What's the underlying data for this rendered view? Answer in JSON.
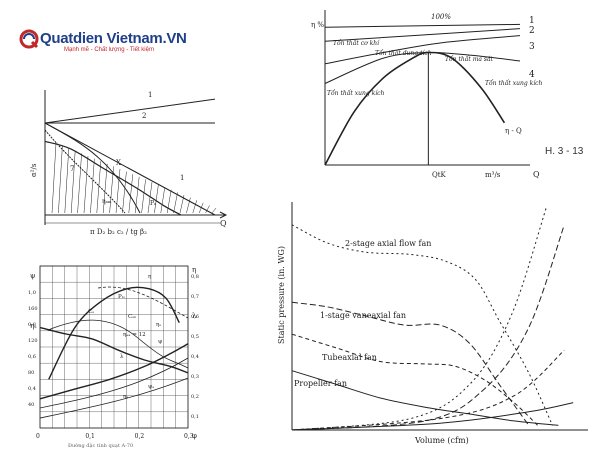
{
  "logo": {
    "brand_text": "Quatdien Vietnam.VN",
    "tagline": "Mạnh mẽ - Chất lượng - Tiết kiệm"
  },
  "caption": "H. 3 - 13",
  "chart_data": [
    {
      "type": "line",
      "panel": "top-left",
      "title": "",
      "ylabel": "α²/s",
      "xlabel": "Q",
      "x_axis_label": "π D₂ b₂ c₂ / tg β₂",
      "curve_labels": [
        "1",
        "2",
        "1",
        "7",
        "X",
        "ηₐₘ",
        "Pₐ"
      ],
      "series": [
        {
          "name": "1",
          "x": [
            0,
            1
          ],
          "y": [
            1.0,
            1.26
          ]
        },
        {
          "name": "2",
          "x": [
            0,
            1
          ],
          "y": [
            1.0,
            1.0
          ]
        },
        {
          "name": "1",
          "x": [
            0,
            1
          ],
          "y": [
            1.0,
            0.0
          ]
        },
        {
          "name": "7",
          "x": [
            0,
            0.15,
            0.35,
            0.55,
            0.7,
            0.8
          ],
          "y": [
            0.8,
            0.72,
            0.5,
            0.28,
            0.1,
            0.0
          ]
        }
      ]
    },
    {
      "type": "line",
      "panel": "top-right",
      "ylabel": "η %",
      "xlabel": "Q",
      "x_unit": "m³/s",
      "x_marker": "QtK",
      "top_label": "100%",
      "line_numbers": [
        "1",
        "2",
        "3",
        "4"
      ],
      "annotations": [
        "Tổn thất cơ khí",
        "Tổn thất dung tích",
        "Tổn thất ma sát",
        "Tổn thất xung kích",
        "Tổn thất xung kích",
        "η - Q"
      ],
      "series": [
        {
          "name": "1",
          "x": [
            0,
            1
          ],
          "y": [
            0.98,
            1.0
          ]
        },
        {
          "name": "2",
          "x": [
            0,
            1
          ],
          "y": [
            0.88,
            0.97
          ]
        },
        {
          "name": "3",
          "x": [
            0,
            0.3,
            0.6,
            1
          ],
          "y": [
            0.72,
            0.8,
            0.87,
            0.92
          ]
        },
        {
          "name": "4",
          "x": [
            0,
            0.3,
            0.53,
            0.75,
            1
          ],
          "y": [
            0.58,
            0.76,
            0.8,
            0.78,
            0.74
          ]
        },
        {
          "name": "η - Q",
          "x": [
            0,
            0.15,
            0.3,
            0.45,
            0.53,
            0.65,
            0.8,
            0.92
          ],
          "y": [
            0.0,
            0.38,
            0.62,
            0.76,
            0.8,
            0.76,
            0.55,
            0.3
          ]
        }
      ]
    },
    {
      "type": "line",
      "panel": "bottom-left",
      "xlabel": "φ",
      "x_ticks": [
        "0",
        "0,1",
        "0,2",
        "0,3"
      ],
      "left_ticks_eta": [
        "0,4",
        "0,6",
        "0,8",
        "1,0"
      ],
      "left_ticks_psi": [
        "40",
        "80",
        "120",
        "160"
      ],
      "right_ticks_lambda": [
        "0,1",
        "0,2",
        "0,3",
        "0,4",
        "0,5",
        "0,6",
        "0,7",
        "0,8"
      ],
      "left_labels": [
        "ψ",
        "ηₛ"
      ],
      "right_labels": [
        "λ",
        "η"
      ],
      "curve_labels": [
        "η",
        "ηₛ",
        "ηₑₐ = 12",
        "ψ",
        "λ",
        "ηₐ",
        "ψₛ",
        "Cₛ",
        "Cₛₙ",
        "Pₜₒ"
      ],
      "footnote": "Đường đặc tính quạt A-70",
      "series": [
        {
          "name": "η",
          "x": [
            0.02,
            0.08,
            0.14,
            0.2,
            0.25,
            0.29,
            0.32
          ],
          "y": [
            0.3,
            0.62,
            0.78,
            0.86,
            0.86,
            0.8,
            0.65
          ]
        },
        {
          "name": "ψ",
          "x": [
            0.0,
            0.06,
            0.12,
            0.18,
            0.24,
            0.3,
            0.34
          ],
          "y": [
            0.62,
            0.58,
            0.55,
            0.48,
            0.42,
            0.38,
            0.34
          ]
        },
        {
          "name": "λ",
          "x": [
            0.0,
            0.08,
            0.16,
            0.24,
            0.3,
            0.34
          ],
          "y": [
            0.18,
            0.24,
            0.3,
            0.38,
            0.46,
            0.52
          ]
        }
      ]
    },
    {
      "type": "line",
      "panel": "bottom-right",
      "ylabel": "Static pressure (in. WG)",
      "xlabel": "Volume (cfm)",
      "series": [
        {
          "name": "2-stage axial flow fan",
          "x": [
            0,
            0.12,
            0.25,
            0.4,
            0.52,
            0.62,
            0.7,
            0.8,
            0.88
          ],
          "y": [
            0.9,
            0.82,
            0.78,
            0.77,
            0.74,
            0.66,
            0.48,
            0.25,
            0.02
          ]
        },
        {
          "name": "1-stage vaneaxial fan",
          "x": [
            0,
            0.12,
            0.25,
            0.38,
            0.5,
            0.6,
            0.7,
            0.8
          ],
          "y": [
            0.56,
            0.54,
            0.5,
            0.46,
            0.46,
            0.38,
            0.2,
            0.02
          ]
        },
        {
          "name": "Tubeaxial fan",
          "x": [
            0,
            0.15,
            0.3,
            0.45,
            0.55,
            0.65,
            0.75,
            0.83
          ],
          "y": [
            0.42,
            0.36,
            0.3,
            0.29,
            0.28,
            0.22,
            0.12,
            0.02
          ]
        },
        {
          "name": "Propeller fan",
          "x": [
            0,
            0.15,
            0.3,
            0.45,
            0.6,
            0.75,
            0.9
          ],
          "y": [
            0.26,
            0.2,
            0.14,
            0.1,
            0.07,
            0.04,
            0.02
          ]
        }
      ]
    }
  ]
}
